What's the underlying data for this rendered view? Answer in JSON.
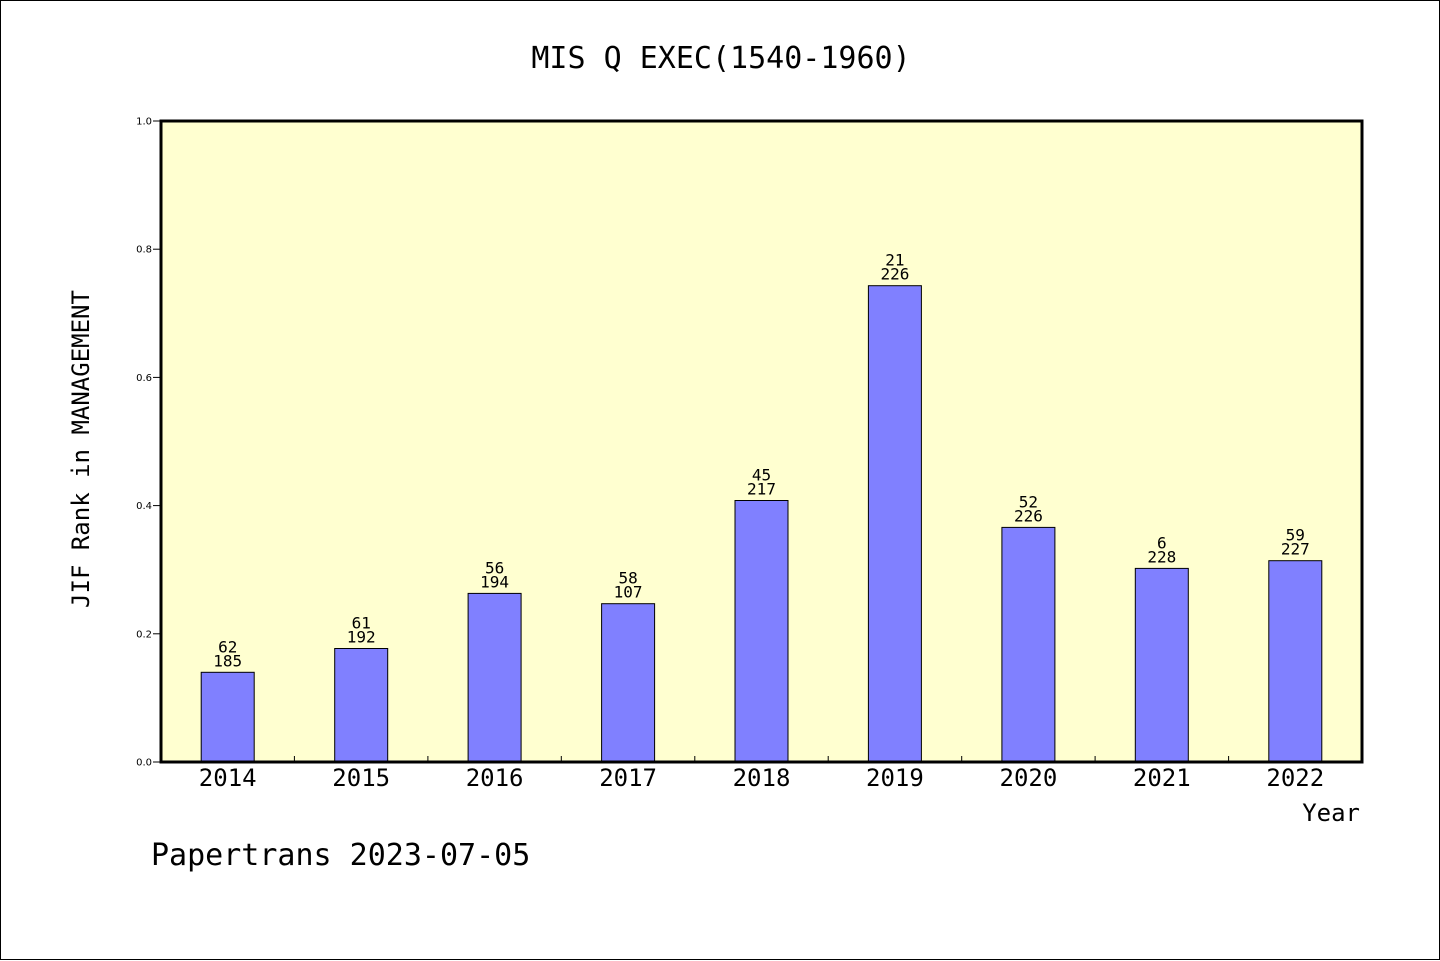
{
  "chart_data": {
    "type": "bar",
    "title": "MIS Q EXEC(1540-1960)",
    "xlabel": "Year",
    "ylabel": "JIF Rank in MANAGEMENT",
    "ylim": [
      0,
      1.0
    ],
    "yticks": [
      "0.0",
      "0.2",
      "0.4",
      "0.6",
      "0.8",
      "1.0"
    ],
    "categories": [
      "2014",
      "2015",
      "2016",
      "2017",
      "2018",
      "2019",
      "2020",
      "2021",
      "2022"
    ],
    "values": [
      0.14,
      0.177,
      0.263,
      0.247,
      0.408,
      0.743,
      0.366,
      0.302,
      0.314
    ],
    "rank": [
      "62",
      "61",
      "56",
      "58",
      "45",
      "21",
      "52",
      "6",
      "59"
    ],
    "total": [
      "185",
      "192",
      "194",
      "107",
      "217",
      "226",
      "226",
      "228",
      "227"
    ],
    "grid": false,
    "colors": {
      "plot_background": "#ffffd0",
      "bar_fill": "#8080ff",
      "bar_stroke": "#000000"
    }
  },
  "footer": "Papertrans 2023-07-05"
}
